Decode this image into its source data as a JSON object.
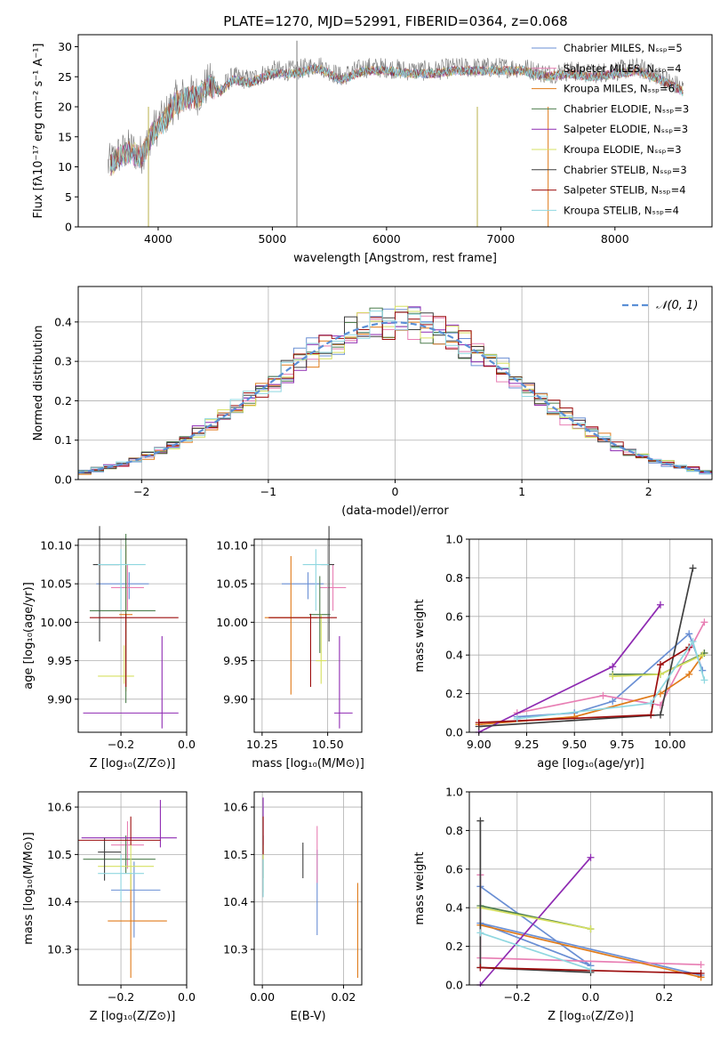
{
  "figure_title": "PLATE=1270, MJD=52991, FIBERID=0364, z=0.068",
  "colors": [
    "#6a8fd4",
    "#e87fb4",
    "#e07b1a",
    "#4f7f4f",
    "#8e2ab2",
    "#d6e060",
    "#3f3f3f",
    "#9c0d0d",
    "#8fd7e0"
  ],
  "chart_data": [
    {
      "id": "spectrum",
      "type": "line",
      "title": "PLATE=1270, MJD=52991, FIBERID=0364, z=0.068",
      "xlabel": "wavelength [Angstrom, rest frame]",
      "ylabel": "Flux [fλ10⁻¹⁷ erg cm⁻² s⁻¹ A⁻¹]",
      "xlim": [
        3300,
        8850
      ],
      "ylim": [
        0,
        32
      ],
      "xticks": [
        4000,
        5000,
        6000,
        7000,
        8000
      ],
      "yticks": [
        0,
        5,
        10,
        15,
        20,
        25,
        30
      ],
      "grid": false,
      "legend_position": "top-right",
      "envelope_x": [
        3550,
        3650,
        3750,
        3850,
        3950,
        4050,
        4150,
        4250,
        4350,
        4450,
        4550,
        4650,
        4800,
        5000,
        5200,
        5400,
        5600,
        5800,
        6000,
        6200,
        6400,
        6600,
        6800,
        7000,
        7200,
        7400,
        7600,
        7800,
        8000,
        8200,
        8400,
        8600
      ],
      "envelope_y": [
        10,
        12,
        13,
        12,
        16,
        18,
        21,
        22,
        22,
        24,
        23,
        25,
        24.5,
        26,
        26,
        27,
        25,
        26.5,
        26.5,
        26,
        26,
        26.5,
        26.5,
        26.5,
        26.5,
        25.5,
        26,
        25.5,
        26,
        26.5,
        25,
        23
      ],
      "legend": [
        "Chabrier MILES, Nₛₛₚ=5",
        "Salpeter MILES, Nₛₛₚ=4",
        "Kroupa MILES, Nₛₛₚ=6",
        "Chabrier ELODIE, Nₛₛₚ=3",
        "Salpeter ELODIE, Nₛₛₚ=3",
        "Kroupa ELODIE, Nₛₛₚ=3",
        "Chabrier STELIB, Nₛₛₚ=3",
        "Salpeter STELIB, Nₛₛₚ=4",
        "Kroupa STELIB, Nₛₛₚ=4"
      ]
    },
    {
      "id": "residuals",
      "type": "histogram",
      "xlabel": "(data-model)/error",
      "ylabel": "Normed distribution",
      "xlim": [
        -2.5,
        2.5
      ],
      "ylim": [
        0,
        0.49
      ],
      "xticks": [
        -2,
        -1,
        0,
        1,
        2
      ],
      "yticks": [
        0.0,
        0.1,
        0.2,
        0.3,
        0.4
      ],
      "grid": true,
      "legend_position": "top-right",
      "legend": [
        "𝒩(0, 1)"
      ],
      "bin_width": 0.1
    },
    {
      "id": "age-vs-Z",
      "type": "errorbar",
      "xlabel": "Z [log₁₀(Z/Z⊙)]",
      "ylabel": "age  [log₁₀(age/yr)]",
      "xlim": [
        -0.33,
        0.0
      ],
      "ylim": [
        9.857,
        10.108
      ],
      "xticks": [
        -0.2,
        0.0
      ],
      "yticks": [
        9.9,
        9.95,
        10.0,
        10.05,
        10.1
      ],
      "grid": true,
      "points": [
        {
          "x": -0.175,
          "xerr": [
            0.1,
            0.06
          ],
          "y": 10.05,
          "yerr": [
            0.02,
            0.015
          ]
        },
        {
          "x": -0.18,
          "xerr": [
            0.05,
            0.05
          ],
          "y": 10.045,
          "yerr": [
            0.03,
            0.03
          ]
        },
        {
          "x": -0.185,
          "xerr": [
            0.02,
            0.02
          ],
          "y": 10.01,
          "yerr": [
            0.1,
            0.09
          ]
        },
        {
          "x": -0.185,
          "xerr": [
            0.11,
            0.09
          ],
          "y": 10.015,
          "yerr": [
            0.12,
            0.1
          ]
        },
        {
          "x": -0.075,
          "xerr": [
            0.24,
            0.05
          ],
          "y": 9.882,
          "yerr": [
            0.02,
            0.1
          ]
        },
        {
          "x": -0.19,
          "xerr": [
            0.08,
            0.03
          ],
          "y": 9.93,
          "yerr": [
            0.01,
            0.04
          ]
        },
        {
          "x": -0.265,
          "xerr": [
            0.02,
            0.06
          ],
          "y": 10.075,
          "yerr": [
            0.1,
            0.05
          ]
        },
        {
          "x": -0.185,
          "xerr": [
            0.11,
            0.16
          ],
          "y": 10.006,
          "yerr": [
            0.09,
            0.005
          ]
        },
        {
          "x": -0.2,
          "xerr": [
            0.07,
            0.075
          ],
          "y": 10.075,
          "yerr": [
            0.06,
            0.02
          ]
        }
      ]
    },
    {
      "id": "age-vs-mass",
      "type": "errorbar",
      "xlabel": "mass [log₁₀(M/M⊙)]",
      "ylabel": "",
      "xlim": [
        10.22,
        10.63
      ],
      "ylim": [
        9.857,
        10.108
      ],
      "xticks": [
        10.25,
        10.5
      ],
      "yticks": [
        9.9,
        9.95,
        10.0,
        10.05,
        10.1
      ],
      "grid": true,
      "points": [
        {
          "x": 10.425,
          "xerr": [
            0.1,
            0.06
          ],
          "y": 10.05,
          "yerr": [
            0.02,
            0.015
          ]
        },
        {
          "x": 10.52,
          "xerr": [
            0.05,
            0.05
          ],
          "y": 10.045,
          "yerr": [
            0.03,
            0.03
          ]
        },
        {
          "x": 10.36,
          "xerr": [
            0.1,
            0.1
          ],
          "y": 10.006,
          "yerr": [
            0.1,
            0.08
          ]
        },
        {
          "x": 10.47,
          "xerr": [
            0.04,
            0.04
          ],
          "y": 10.01,
          "yerr": [
            0.05,
            0.05
          ]
        },
        {
          "x": 10.545,
          "xerr": [
            0.02,
            0.05
          ],
          "y": 9.882,
          "yerr": [
            0.02,
            0.1
          ]
        },
        {
          "x": 10.475,
          "xerr": [
            0.02,
            0.02
          ],
          "y": 9.95,
          "yerr": [
            0.03,
            0.06
          ]
        },
        {
          "x": 10.505,
          "xerr": [
            0.03,
            0.02
          ],
          "y": 10.075,
          "yerr": [
            0.1,
            0.05
          ]
        },
        {
          "x": 10.435,
          "xerr": [
            0.16,
            0.1
          ],
          "y": 10.006,
          "yerr": [
            0.09,
            0.005
          ]
        },
        {
          "x": 10.455,
          "xerr": [
            0.05,
            0.05
          ],
          "y": 10.075,
          "yerr": [
            0.06,
            0.02
          ]
        }
      ]
    },
    {
      "id": "massweight-vs-age",
      "type": "line",
      "xlabel": "age  [log₁₀(age/yr)]",
      "ylabel": "mass weight",
      "xlim": [
        8.95,
        10.22
      ],
      "ylim": [
        0.0,
        1.0
      ],
      "xticks": [
        9.0,
        9.25,
        9.5,
        9.75,
        10.0
      ],
      "yticks": [
        0.0,
        0.2,
        0.4,
        0.6,
        0.8,
        1.0
      ],
      "grid": true,
      "series": [
        {
          "x": [
            9.2,
            9.5,
            9.7,
            10.1,
            10.17
          ],
          "y": [
            0.08,
            0.1,
            0.16,
            0.51,
            0.32
          ]
        },
        {
          "x": [
            9.2,
            9.65,
            9.95,
            10.18
          ],
          "y": [
            0.1,
            0.19,
            0.14,
            0.57
          ]
        },
        {
          "x": [
            9.0,
            9.5,
            9.95,
            10.1,
            10.18
          ],
          "y": [
            0.04,
            0.08,
            0.2,
            0.3,
            0.41
          ]
        },
        {
          "x": [
            9.7,
            9.95,
            10.18
          ],
          "y": [
            0.3,
            0.3,
            0.41
          ]
        },
        {
          "x": [
            9.0,
            9.7,
            9.95
          ],
          "y": [
            0.0,
            0.34,
            0.66
          ]
        },
        {
          "x": [
            9.7,
            9.95,
            10.17
          ],
          "y": [
            0.29,
            0.3,
            0.4
          ]
        },
        {
          "x": [
            9.0,
            9.95,
            10.12
          ],
          "y": [
            0.03,
            0.09,
            0.85
          ]
        },
        {
          "x": [
            9.0,
            9.9,
            9.95,
            10.1
          ],
          "y": [
            0.05,
            0.09,
            0.35,
            0.44
          ]
        },
        {
          "x": [
            9.2,
            9.9,
            10.12,
            10.18
          ],
          "y": [
            0.07,
            0.15,
            0.47,
            0.27
          ]
        }
      ]
    },
    {
      "id": "mass-vs-Z",
      "type": "errorbar",
      "xlabel": "Z [log₁₀(Z/Z⊙)]",
      "ylabel": "mass [log₁₀(M/M⊙)]",
      "xlim": [
        -0.33,
        0.0
      ],
      "ylim": [
        10.225,
        10.632
      ],
      "xticks": [
        -0.2,
        0.0
      ],
      "yticks": [
        10.3,
        10.4,
        10.5,
        10.6
      ],
      "grid": true,
      "points": [
        {
          "x": -0.16,
          "xerr": [
            0.07,
            0.08
          ],
          "y": 10.425,
          "yerr": [
            0.1,
            0.06
          ]
        },
        {
          "x": -0.18,
          "xerr": [
            0.05,
            0.05
          ],
          "y": 10.52,
          "yerr": [
            0.05,
            0.05
          ]
        },
        {
          "x": -0.17,
          "xerr": [
            0.07,
            0.11
          ],
          "y": 10.36,
          "yerr": [
            0.12,
            0.1
          ]
        },
        {
          "x": -0.185,
          "xerr": [
            0.13,
            0.09
          ],
          "y": 10.49,
          "yerr": [
            0.03,
            0.05
          ]
        },
        {
          "x": -0.08,
          "xerr": [
            0.24,
            0.05
          ],
          "y": 10.535,
          "yerr": [
            0.02,
            0.08
          ]
        },
        {
          "x": -0.17,
          "xerr": [
            0.1,
            0.07
          ],
          "y": 10.475,
          "yerr": [
            0.05,
            0.05
          ]
        },
        {
          "x": -0.25,
          "xerr": [
            0.02,
            0.05
          ],
          "y": 10.505,
          "yerr": [
            0.06,
            0.03
          ]
        },
        {
          "x": -0.17,
          "xerr": [
            0.16,
            0.09
          ],
          "y": 10.53,
          "yerr": [
            0.01,
            0.05
          ]
        },
        {
          "x": -0.2,
          "xerr": [
            0.07,
            0.07
          ],
          "y": 10.46,
          "yerr": [
            0.06,
            0.04
          ]
        }
      ]
    },
    {
      "id": "mass-vs-EBV",
      "type": "errorbar",
      "xlabel": "E(B-V)",
      "ylabel": "",
      "xlim": [
        -0.002,
        0.0245
      ],
      "ylim": [
        10.225,
        10.632
      ],
      "xticks": [
        0.0,
        0.02
      ],
      "yticks": [
        10.3,
        10.4,
        10.5,
        10.6
      ],
      "grid": true,
      "points": [
        {
          "x": 0.0135,
          "xerr": [
            0,
            0
          ],
          "y": 10.43,
          "yerr": [
            0.1,
            0.08
          ]
        },
        {
          "x": 0.0135,
          "xerr": [
            0,
            0
          ],
          "y": 10.5,
          "yerr": [
            0.06,
            0.06
          ]
        },
        {
          "x": 0.0235,
          "xerr": [
            0,
            0
          ],
          "y": 10.34,
          "yerr": [
            0.1,
            0.1
          ]
        },
        {
          "x": 0.0002,
          "xerr": [
            0,
            0
          ],
          "y": 10.49,
          "yerr": [
            0.04,
            0.05
          ]
        },
        {
          "x": 0.0002,
          "xerr": [
            0,
            0
          ],
          "y": 10.56,
          "yerr": [
            0.04,
            0.06
          ]
        },
        {
          "x": 0.0002,
          "xerr": [
            0,
            0
          ],
          "y": 10.47,
          "yerr": [
            0.05,
            0.05
          ]
        },
        {
          "x": 0.01,
          "xerr": [
            0,
            0
          ],
          "y": 10.49,
          "yerr": [
            0.04,
            0.035
          ]
        },
        {
          "x": 0.0002,
          "xerr": [
            0,
            0
          ],
          "y": 10.53,
          "yerr": [
            0.03,
            0.05
          ]
        },
        {
          "x": 0.0002,
          "xerr": [
            0,
            0
          ],
          "y": 10.45,
          "yerr": [
            0.04,
            0.04
          ]
        }
      ]
    },
    {
      "id": "massweight-vs-Z",
      "type": "line",
      "xlabel": "Z [log₁₀(Z/Z⊙)]",
      "ylabel": "mass weight",
      "xlim": [
        -0.33,
        0.33
      ],
      "ylim": [
        0.0,
        1.0
      ],
      "xticks": [
        -0.2,
        0.0,
        0.2
      ],
      "yticks": [
        0.0,
        0.2,
        0.4,
        0.6,
        0.8,
        1.0
      ],
      "grid": true,
      "series": [
        {
          "x": [
            -0.3,
            0.0,
            -0.3,
            0.3
          ],
          "y": [
            0.51,
            0.1,
            0.32,
            0.05
          ]
        },
        {
          "x": [
            -0.3,
            -0.3,
            0.3
          ],
          "y": [
            0.57,
            0.14,
            0.105
          ]
        },
        {
          "x": [
            -0.3,
            0.3
          ],
          "y": [
            0.31,
            0.04
          ]
        },
        {
          "x": [
            -0.3,
            0.0
          ],
          "y": [
            0.41,
            0.29
          ]
        },
        {
          "x": [
            -0.3,
            0.0
          ],
          "y": [
            0.0,
            0.66
          ]
        },
        {
          "x": [
            -0.3,
            0.0
          ],
          "y": [
            0.4,
            0.29
          ]
        },
        {
          "x": [
            -0.3,
            -0.3,
            0.0
          ],
          "y": [
            0.85,
            0.09,
            0.065
          ]
        },
        {
          "x": [
            -0.3,
            0.3
          ],
          "y": [
            0.09,
            0.06
          ]
        },
        {
          "x": [
            -0.3,
            0.0
          ],
          "y": [
            0.27,
            0.08
          ]
        }
      ]
    }
  ]
}
